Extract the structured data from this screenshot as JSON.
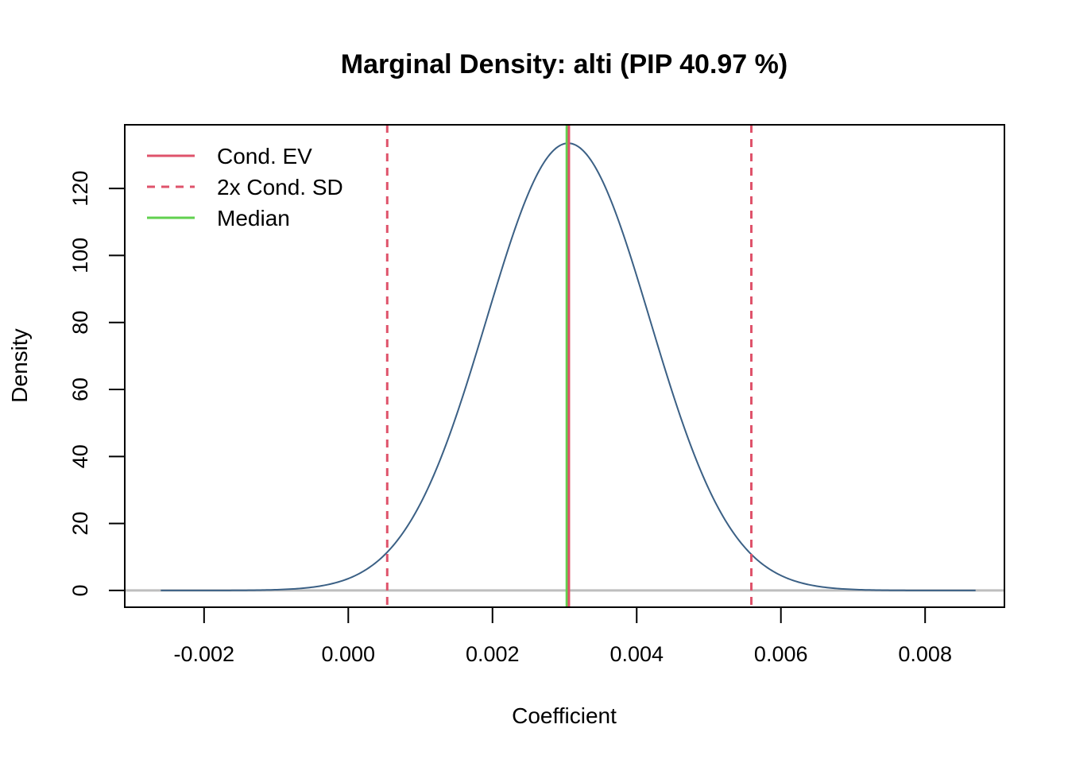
{
  "chart_data": {
    "type": "line",
    "title": "Marginal Density: alti (PIP 40.97 %)",
    "xlabel": "Coefficient",
    "ylabel": "Density",
    "xlim": [
      -0.0031,
      0.0091
    ],
    "ylim": [
      -5,
      139
    ],
    "x_ticks": [
      -0.002,
      0.0,
      0.002,
      0.004,
      0.006,
      0.008
    ],
    "x_tick_labels": [
      "-0.002",
      "0.000",
      "0.002",
      "0.004",
      "0.006",
      "0.008"
    ],
    "y_ticks": [
      0,
      20,
      40,
      60,
      80,
      100,
      120
    ],
    "y_tick_labels": [
      "0",
      "20",
      "40",
      "60",
      "80",
      "100",
      "120"
    ],
    "density": {
      "mean": 0.00305,
      "sd": 0.003,
      "peak": 133.5,
      "x_range": [
        -0.0026,
        0.0087
      ],
      "color": "#3b6085"
    },
    "cond_ev": 0.00306,
    "cond_sd_bounds": [
      0.00054,
      0.00559
    ],
    "median": 0.00303,
    "zero_line_color": "#bebebe",
    "legend": {
      "position": "top-left",
      "entries": [
        {
          "label": "Cond. EV",
          "color": "#df536b",
          "style": "solid"
        },
        {
          "label": "2x Cond. SD",
          "color": "#df536b",
          "style": "dashed"
        },
        {
          "label": "Median",
          "color": "#61d04f",
          "style": "solid"
        }
      ]
    },
    "grid": false
  }
}
